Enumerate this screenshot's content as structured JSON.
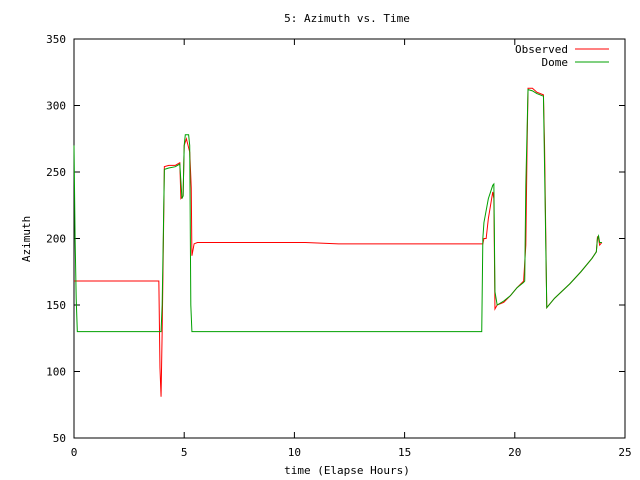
{
  "chart_data": {
    "type": "line",
    "title": "5: Azimuth vs. Time",
    "xlabel": "time (Elapse Hours)",
    "ylabel": "Azimuth",
    "xlim": [
      0,
      25
    ],
    "ylim": [
      50,
      350
    ],
    "xticks": [
      0,
      5,
      10,
      15,
      20,
      25
    ],
    "yticks": [
      50,
      100,
      150,
      200,
      250,
      300,
      350
    ],
    "grid": false,
    "legend": "top-right",
    "series": [
      {
        "name": "Observed",
        "color": "#ff0000",
        "points": [
          [
            0,
            168
          ],
          [
            3.85,
            168
          ],
          [
            3.9,
            103
          ],
          [
            3.95,
            81
          ],
          [
            4.0,
            130
          ],
          [
            4.05,
            190
          ],
          [
            4.1,
            254
          ],
          [
            4.3,
            255
          ],
          [
            4.6,
            255
          ],
          [
            4.8,
            257
          ],
          [
            4.85,
            230
          ],
          [
            4.95,
            232
          ],
          [
            5.0,
            270
          ],
          [
            5.1,
            275
          ],
          [
            5.25,
            265
          ],
          [
            5.3,
            246
          ],
          [
            5.32,
            238
          ],
          [
            5.35,
            187
          ],
          [
            5.45,
            196
          ],
          [
            5.6,
            197
          ],
          [
            7.0,
            197
          ],
          [
            9.0,
            197
          ],
          [
            10.5,
            197
          ],
          [
            12.0,
            196
          ],
          [
            15.0,
            196
          ],
          [
            18.0,
            196
          ],
          [
            18.55,
            196
          ],
          [
            18.6,
            200
          ],
          [
            18.7,
            200
          ],
          [
            18.8,
            215
          ],
          [
            19.0,
            235
          ],
          [
            19.05,
            230
          ],
          [
            19.1,
            147
          ],
          [
            19.2,
            150
          ],
          [
            19.5,
            152
          ],
          [
            19.8,
            157
          ],
          [
            20.1,
            163
          ],
          [
            20.4,
            168
          ],
          [
            20.5,
            195
          ],
          [
            20.55,
            260
          ],
          [
            20.6,
            313
          ],
          [
            20.8,
            313
          ],
          [
            21.0,
            310
          ],
          [
            21.3,
            308
          ],
          [
            21.35,
            270
          ],
          [
            21.45,
            148
          ],
          [
            21.8,
            155
          ],
          [
            22.5,
            166
          ],
          [
            23.0,
            175
          ],
          [
            23.5,
            185
          ],
          [
            23.7,
            190
          ],
          [
            23.75,
            201
          ],
          [
            23.8,
            200
          ],
          [
            23.85,
            195
          ],
          [
            23.95,
            197
          ]
        ]
      },
      {
        "name": "Dome",
        "color": "#00a000",
        "points": [
          [
            0,
            270
          ],
          [
            0.05,
            200
          ],
          [
            0.1,
            155
          ],
          [
            0.15,
            130
          ],
          [
            3.95,
            130
          ],
          [
            4.0,
            150
          ],
          [
            4.05,
            200
          ],
          [
            4.1,
            252
          ],
          [
            4.3,
            253
          ],
          [
            4.6,
            254
          ],
          [
            4.8,
            256
          ],
          [
            4.9,
            230
          ],
          [
            4.95,
            232
          ],
          [
            5.0,
            270
          ],
          [
            5.05,
            278
          ],
          [
            5.2,
            278
          ],
          [
            5.25,
            270
          ],
          [
            5.3,
            150
          ],
          [
            5.35,
            130
          ],
          [
            18.5,
            130
          ],
          [
            18.55,
            200
          ],
          [
            18.6,
            212
          ],
          [
            18.8,
            230
          ],
          [
            19.0,
            240
          ],
          [
            19.05,
            241
          ],
          [
            19.1,
            160
          ],
          [
            19.2,
            150
          ],
          [
            19.5,
            153
          ],
          [
            19.8,
            157
          ],
          [
            20.1,
            163
          ],
          [
            20.4,
            167
          ],
          [
            20.45,
            168
          ],
          [
            20.5,
            240
          ],
          [
            20.6,
            312
          ],
          [
            20.8,
            311
          ],
          [
            21.0,
            309
          ],
          [
            21.3,
            307
          ],
          [
            21.45,
            148
          ],
          [
            21.8,
            155
          ],
          [
            22.5,
            166
          ],
          [
            23.0,
            175
          ],
          [
            23.5,
            185
          ],
          [
            23.7,
            190
          ],
          [
            23.75,
            200
          ],
          [
            23.8,
            202
          ],
          [
            23.85,
            197
          ],
          [
            23.95,
            197
          ]
        ]
      }
    ]
  }
}
